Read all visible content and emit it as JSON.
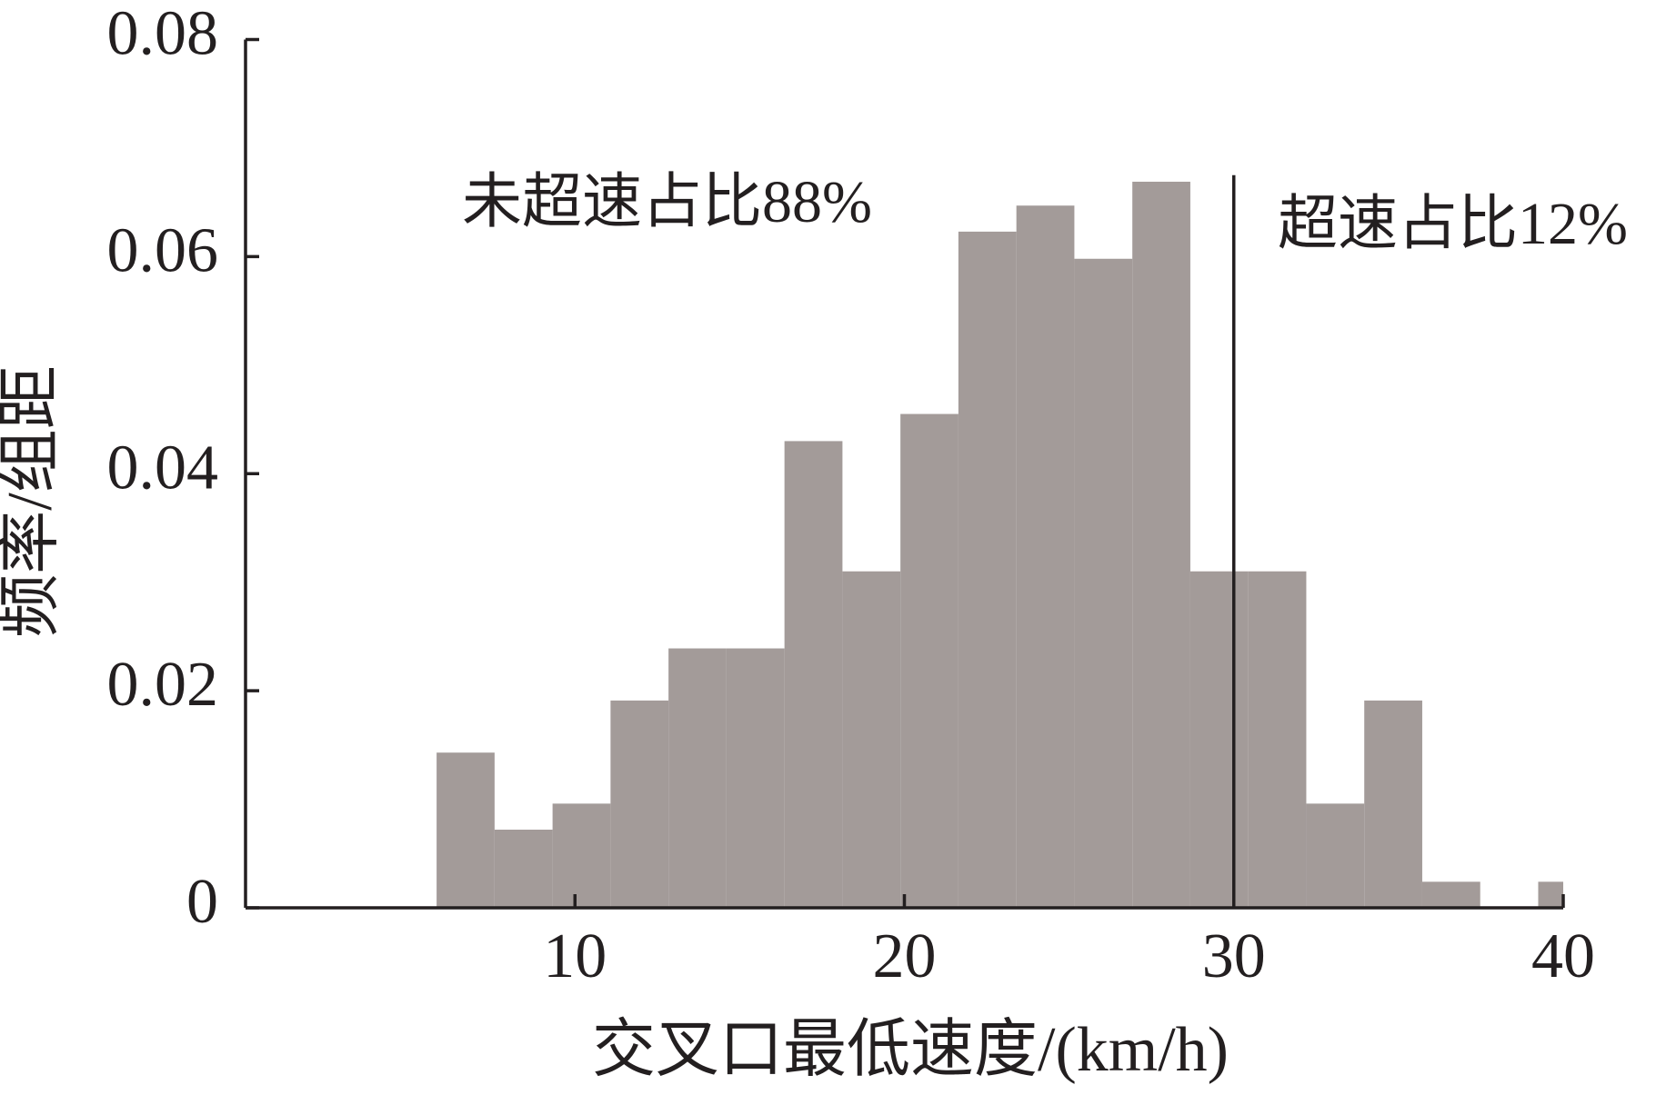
{
  "chart_data": {
    "type": "histogram",
    "xlabel": "交叉口最低速度/(km/h)",
    "ylabel": "频率/组距",
    "bins": [
      5.8,
      7.56,
      9.32,
      11.08,
      12.84,
      14.6,
      16.36,
      18.12,
      19.88,
      21.64,
      23.4,
      25.16,
      26.92,
      28.68,
      30.44,
      32.2,
      33.96,
      35.72,
      37.48,
      39.24,
      40
    ],
    "counts": [
      0.0143,
      0.0072,
      0.0096,
      0.0191,
      0.0239,
      0.0239,
      0.043,
      0.031,
      0.0455,
      0.0623,
      0.0647,
      0.0598,
      0.0669,
      0.031,
      0.031,
      0.0096,
      0.0191,
      0.0024,
      0,
      0.0024
    ],
    "color": "#a39b99",
    "xlim": [
      0,
      40
    ],
    "xticks": [
      10,
      20,
      30,
      40
    ],
    "ylim": [
      0,
      0.08
    ],
    "yticks": [
      0,
      0.02,
      0.04,
      0.06,
      0.08
    ],
    "vlines": [
      30
    ],
    "annotations": [
      "未超速占比88%",
      "超速占比12%"
    ]
  }
}
